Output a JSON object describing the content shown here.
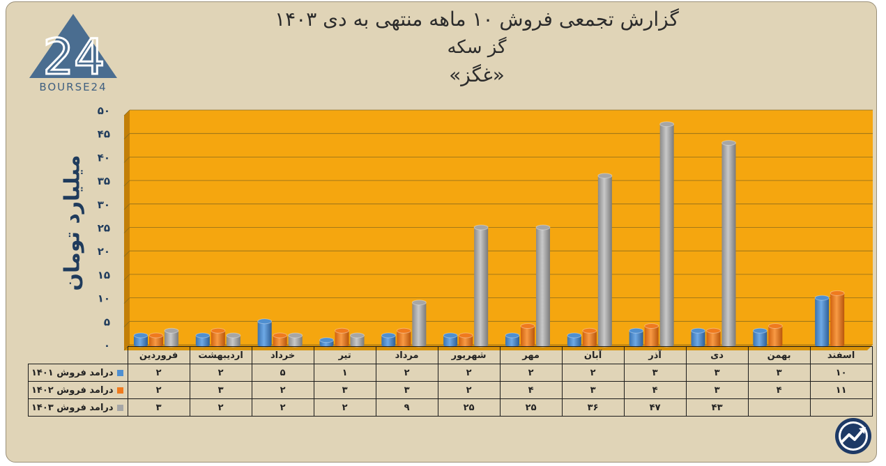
{
  "title": {
    "line1": "گزارش تجمعی فروش ۱۰ ماهه منتهی به دی ۱۴۰۳",
    "line2": "گز سکه",
    "line3": "«غگز»"
  },
  "logo": {
    "text": "BOURSE24",
    "mark": "24"
  },
  "colors": {
    "background": "#e0d4b7",
    "plot_area": "#f5a60f",
    "series_1401": "#4f8fd0",
    "series_1402": "#ef7a1e",
    "series_1403": "#a6a6a6",
    "ylabel": "#1f3b5c"
  },
  "chart_data": {
    "type": "bar",
    "ylabel": "میلیارد تومان",
    "ylim": [
      0,
      50
    ],
    "yticks": [
      0,
      5,
      10,
      15,
      20,
      25,
      30,
      35,
      40,
      45,
      50
    ],
    "ytick_labels": [
      "۰",
      "۵",
      "۱۰",
      "۱۵",
      "۲۰",
      "۲۵",
      "۳۰",
      "۳۵",
      "۴۰",
      "۴۵",
      "۵۰"
    ],
    "grid": true,
    "categories": [
      "فروردین",
      "اردیبهشت",
      "خرداد",
      "تیر",
      "مرداد",
      "شهریور",
      "مهر",
      "آبان",
      "آذر",
      "دی",
      "بهمن",
      "اسفند"
    ],
    "series": [
      {
        "name": "درامد فروش ۱۴۰۱",
        "values": [
          2,
          2,
          5,
          1,
          2,
          2,
          2,
          2,
          3,
          3,
          3,
          10
        ],
        "labels": [
          "۲",
          "۲",
          "۵",
          "۱",
          "۲",
          "۲",
          "۲",
          "۲",
          "۳",
          "۳",
          "۳",
          "۱۰"
        ]
      },
      {
        "name": "درامد فروش ۱۴۰۲",
        "values": [
          2,
          3,
          2,
          3,
          3,
          2,
          4,
          3,
          4,
          3,
          4,
          11
        ],
        "labels": [
          "۲",
          "۳",
          "۲",
          "۳",
          "۳",
          "۲",
          "۴",
          "۳",
          "۴",
          "۳",
          "۴",
          "۱۱"
        ]
      },
      {
        "name": "درامد فروش ۱۴۰۳",
        "values": [
          3,
          2,
          2,
          2,
          9,
          25,
          25,
          36,
          47,
          43,
          null,
          null
        ],
        "labels": [
          "۳",
          "۲",
          "۲",
          "۲",
          "۹",
          "۲۵",
          "۲۵",
          "۳۶",
          "۴۷",
          "۴۳",
          "",
          ""
        ]
      }
    ],
    "legend_placement": "table-left"
  }
}
